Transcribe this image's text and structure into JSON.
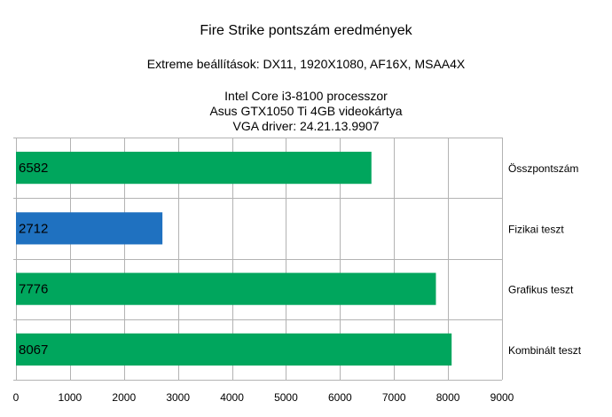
{
  "chart_data": {
    "type": "bar",
    "orientation": "horizontal",
    "title": "Fire Strike pontszám eredmények",
    "subtitle_lines": [
      "Extreme beállítások: DX11, 1920X1080, AF16X, MSAA4X",
      "Intel Core i3-8100 processzor",
      "Asus GTX1050 Ti 4GB videokártya",
      "VGA driver: 24.21.13.9907"
    ],
    "categories": [
      "Összpontszám",
      "Fizikai teszt",
      "Grafikus teszt",
      "Kombinált teszt"
    ],
    "values": [
      6582,
      2712,
      7776,
      8067
    ],
    "bar_colors": [
      "#00a65d",
      "#1f71c0",
      "#00a65d",
      "#00a65d"
    ],
    "xlim": [
      0,
      9000
    ],
    "xticks": [
      0,
      1000,
      2000,
      3000,
      4000,
      5000,
      6000,
      7000,
      8000,
      9000
    ],
    "grid": true,
    "category_labels_position": "right",
    "data_labels_position": "inside-start"
  }
}
